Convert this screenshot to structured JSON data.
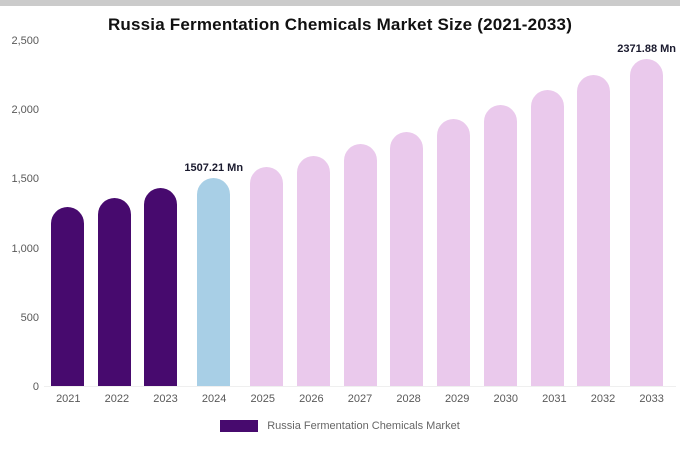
{
  "window": {
    "top_edge_color": "#cbcbcb"
  },
  "chart": {
    "title": "Russia Fermentation Chemicals Market Size (2021-2033)",
    "legend_label": "Russia Fermentation Chemicals Market"
  },
  "chart_data": {
    "type": "bar",
    "title": "Russia Fermentation Chemicals Market Size (2021-2033)",
    "categories": [
      "2021",
      "2022",
      "2023",
      "2024",
      "2025",
      "2026",
      "2027",
      "2028",
      "2029",
      "2030",
      "2031",
      "2032",
      "2033"
    ],
    "values": [
      1296,
      1363,
      1433,
      1507.21,
      1585,
      1667,
      1753,
      1843,
      1938,
      2038,
      2143,
      2254,
      2371.88
    ],
    "unit": "Mn",
    "ylim": [
      0,
      2500
    ],
    "ytick_labels": [
      "2,500",
      "2,000",
      "1,500",
      "1,000",
      "500",
      "0"
    ],
    "bar_colors": [
      "#470a6e",
      "#470a6e",
      "#470a6e",
      "#a8cfe6",
      "#eac9ec",
      "#eac9ec",
      "#eac9ec",
      "#eac9ec",
      "#eac9ec",
      "#eac9ec",
      "#eac9ec",
      "#eac9ec",
      "#eac9ec"
    ],
    "annotations": [
      {
        "category": "2024",
        "text": "1507.21 Mn"
      },
      {
        "category": "2033",
        "text": "2371.88 Mn"
      }
    ],
    "grid": false,
    "legend_position": "bottom",
    "legend": {
      "label": "Russia Fermentation Chemicals Market",
      "color": "#470a6e"
    },
    "axis_text_color": "#595959",
    "annotation_text_color": "#1a1a2e"
  }
}
